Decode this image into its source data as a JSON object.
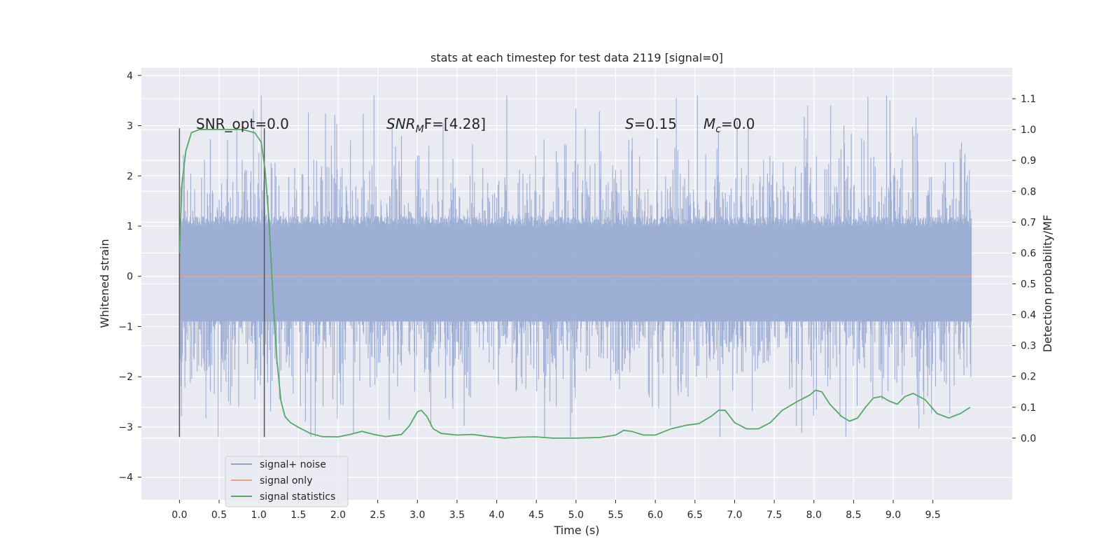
{
  "chart_data": {
    "type": "line",
    "title": "stats at each timestep for test data 2119 [signal=0]",
    "xlabel": "Time (s)",
    "ylabel_left": "Whitened strain",
    "ylabel_right": "Detection probability/MF",
    "xlim": [
      -0.48,
      10.5
    ],
    "ylim_left": [
      -4.45,
      4.15
    ],
    "ylim_right": [
      -0.2,
      1.2
    ],
    "x_ticks": [
      "0.0",
      "0.5",
      "1.0",
      "1.5",
      "2.0",
      "2.5",
      "3.0",
      "3.5",
      "4.0",
      "4.5",
      "5.0",
      "5.5",
      "6.0",
      "6.5",
      "7.0",
      "7.5",
      "8.0",
      "8.5",
      "9.0",
      "9.5"
    ],
    "y_ticks_left": [
      "4",
      "3",
      "2",
      "1",
      "0",
      "−1",
      "−2",
      "−3",
      "−4"
    ],
    "y_ticks_right": [
      "1.1",
      "1.0",
      "0.9",
      "0.8",
      "0.7",
      "0.6",
      "0.5",
      "0.4",
      "0.3",
      "0.2",
      "0.1",
      "0.0"
    ],
    "grid": true,
    "legend_placement": "bottom-left",
    "annotations": {
      "snr_opt": "SNR_opt=0.0",
      "snr_mf_main": "SNR",
      "snr_mf_sub": "M",
      "snr_mf_rest": "F=[4.28]",
      "s_sym": "S",
      "s_val": "=0.15",
      "mc_sym": "M",
      "mc_sub": "c",
      "mc_val": "=0.0"
    },
    "window_markers_x": [
      0.0,
      1.07
    ],
    "series": [
      {
        "name": "signal+ noise",
        "color": "#8fa3cf",
        "noise_amplitude": 1.1,
        "x_range": [
          0.0,
          9.99
        ]
      },
      {
        "name": "signal only",
        "color": "#e0a58a",
        "values": "constant 0",
        "x_range": [
          0.0,
          9.99
        ]
      },
      {
        "name": "signal statistics",
        "color": "#55a868",
        "axis": "right",
        "x": [
          0.0,
          0.03,
          0.08,
          0.15,
          0.25,
          0.4,
          0.6,
          0.8,
          0.95,
          1.03,
          1.08,
          1.13,
          1.18,
          1.23,
          1.28,
          1.33,
          1.4,
          1.5,
          1.65,
          1.8,
          2.0,
          2.15,
          2.3,
          2.45,
          2.6,
          2.8,
          2.9,
          3.0,
          3.05,
          3.12,
          3.2,
          3.3,
          3.5,
          3.7,
          3.9,
          4.1,
          4.3,
          4.5,
          4.7,
          5.0,
          5.3,
          5.5,
          5.6,
          5.7,
          5.85,
          6.0,
          6.2,
          6.4,
          6.55,
          6.7,
          6.8,
          6.88,
          7.0,
          7.15,
          7.3,
          7.45,
          7.6,
          7.8,
          7.95,
          8.02,
          8.1,
          8.2,
          8.35,
          8.45,
          8.55,
          8.65,
          8.75,
          8.85,
          8.95,
          9.05,
          9.15,
          9.25,
          9.4,
          9.55,
          9.7,
          9.85,
          9.97
        ],
        "values": [
          0.6,
          0.82,
          0.93,
          0.99,
          1.0,
          1.0,
          1.0,
          1.0,
          0.99,
          0.96,
          0.87,
          0.7,
          0.45,
          0.25,
          0.12,
          0.07,
          0.05,
          0.035,
          0.015,
          0.005,
          0.004,
          0.012,
          0.022,
          0.012,
          0.005,
          0.012,
          0.04,
          0.085,
          0.09,
          0.07,
          0.03,
          0.015,
          0.01,
          0.012,
          0.005,
          0.0,
          0.003,
          0.004,
          0.0,
          0.0,
          0.002,
          0.01,
          0.025,
          0.022,
          0.01,
          0.01,
          0.03,
          0.042,
          0.047,
          0.07,
          0.09,
          0.09,
          0.05,
          0.03,
          0.03,
          0.05,
          0.09,
          0.12,
          0.14,
          0.155,
          0.15,
          0.11,
          0.07,
          0.055,
          0.065,
          0.1,
          0.13,
          0.135,
          0.12,
          0.11,
          0.135,
          0.145,
          0.125,
          0.08,
          0.065,
          0.08,
          0.1
        ]
      }
    ]
  }
}
